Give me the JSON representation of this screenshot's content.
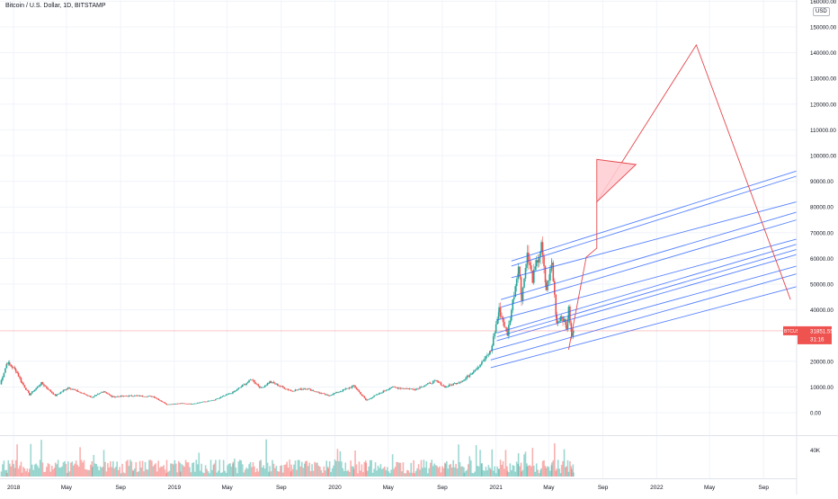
{
  "symbol_title": "Bitcoin / U.S. Dollar, 1D, BITSTAMP",
  "currency": "USD",
  "price_label": {
    "ticker": "BTCUSD",
    "price": "31851.55",
    "countdown": "31:16",
    "value": 31851.55,
    "color": "#ef5350"
  },
  "colors": {
    "up": "#26a69a",
    "down": "#ef5350",
    "channel_lines": "#2962ff",
    "projection": "#e5484d",
    "grid": "#f0f3fa",
    "axis_text": "#131722"
  },
  "chart_data": {
    "type": "candlestick",
    "title": "Bitcoin / U.S. Dollar, 1D, BITSTAMP",
    "y_axis": {
      "min": 0,
      "max": 160000,
      "ticks": [
        {
          "value": 160000,
          "label": "160000.00"
        },
        {
          "value": 150000,
          "label": "150000.00"
        },
        {
          "value": 140000,
          "label": "140000.00"
        },
        {
          "value": 130000,
          "label": "130000.00"
        },
        {
          "value": 120000,
          "label": "120000.00"
        },
        {
          "value": 110000,
          "label": "110000.00"
        },
        {
          "value": 100000,
          "label": "100000.00"
        },
        {
          "value": 90000,
          "label": "90000.00"
        },
        {
          "value": 80000,
          "label": "80000.00"
        },
        {
          "value": 70000,
          "label": "70000.00"
        },
        {
          "value": 60000,
          "label": "60000.00"
        },
        {
          "value": 50000,
          "label": "50000.00"
        },
        {
          "value": 40000,
          "label": "40000.00"
        },
        {
          "value": 20000,
          "label": "20000.00"
        },
        {
          "value": 10000,
          "label": "10000.00"
        },
        {
          "value": 0,
          "label": "0.00"
        }
      ]
    },
    "x_axis": {
      "start": "2017-12-01",
      "end": "2022-11-15",
      "ticks": [
        {
          "date": "2018-01-01",
          "label": "2018"
        },
        {
          "date": "2018-05-01",
          "label": "May"
        },
        {
          "date": "2018-09-01",
          "label": "Sep"
        },
        {
          "date": "2019-01-01",
          "label": "2019"
        },
        {
          "date": "2019-05-01",
          "label": "May"
        },
        {
          "date": "2019-09-01",
          "label": "Sep"
        },
        {
          "date": "2020-01-01",
          "label": "2020"
        },
        {
          "date": "2020-05-01",
          "label": "May"
        },
        {
          "date": "2020-09-01",
          "label": "Sep"
        },
        {
          "date": "2021-01-01",
          "label": "2021"
        },
        {
          "date": "2021-05-01",
          "label": "May"
        },
        {
          "date": "2021-09-01",
          "label": "Sep"
        },
        {
          "date": "2022-01-01",
          "label": "2022"
        },
        {
          "date": "2022-05-01",
          "label": "May"
        },
        {
          "date": "2022-09-01",
          "label": "Sep"
        }
      ]
    },
    "price_path": [
      [
        "2017-12-01",
        11000
      ],
      [
        "2017-12-17",
        19500
      ],
      [
        "2018-01-06",
        16500
      ],
      [
        "2018-01-20",
        11500
      ],
      [
        "2018-02-06",
        7000
      ],
      [
        "2018-03-05",
        11500
      ],
      [
        "2018-04-06",
        6600
      ],
      [
        "2018-05-05",
        9800
      ],
      [
        "2018-06-29",
        5900
      ],
      [
        "2018-07-25",
        8400
      ],
      [
        "2018-08-12",
        6200
      ],
      [
        "2018-09-30",
        6600
      ],
      [
        "2018-11-14",
        6300
      ],
      [
        "2018-12-15",
        3200
      ],
      [
        "2019-01-15",
        3600
      ],
      [
        "2019-02-08",
        3400
      ],
      [
        "2019-04-02",
        4900
      ],
      [
        "2019-05-15",
        8000
      ],
      [
        "2019-06-26",
        13000
      ],
      [
        "2019-07-17",
        9500
      ],
      [
        "2019-08-06",
        12000
      ],
      [
        "2019-09-24",
        8500
      ],
      [
        "2019-10-26",
        9500
      ],
      [
        "2019-12-17",
        6600
      ],
      [
        "2020-02-13",
        10400
      ],
      [
        "2020-03-12",
        4800
      ],
      [
        "2020-05-08",
        9900
      ],
      [
        "2020-06-30",
        9100
      ],
      [
        "2020-08-17",
        12300
      ],
      [
        "2020-09-08",
        10000
      ],
      [
        "2020-10-21",
        12800
      ],
      [
        "2020-11-30",
        19500
      ],
      [
        "2020-12-20",
        24000
      ],
      [
        "2021-01-08",
        40000
      ],
      [
        "2021-01-27",
        30500
      ],
      [
        "2021-02-21",
        57000
      ],
      [
        "2021-02-28",
        45000
      ],
      [
        "2021-03-13",
        61000
      ],
      [
        "2021-03-25",
        52000
      ],
      [
        "2021-04-14",
        64500
      ],
      [
        "2021-04-25",
        48000
      ],
      [
        "2021-05-08",
        58000
      ],
      [
        "2021-05-19",
        35000
      ],
      [
        "2021-05-30",
        38000
      ],
      [
        "2021-06-10",
        33000
      ],
      [
        "2021-06-15",
        40000
      ],
      [
        "2021-06-22",
        29500
      ],
      [
        "2021-06-26",
        31851
      ]
    ],
    "channel_lines": [
      {
        "x1": "2020-12-20",
        "y1": 24200,
        "x2": "2022-11-15",
        "y2": 57000
      },
      {
        "x1": "2020-12-20",
        "y1": 20500,
        "x2": "2022-11-15",
        "y2": 54000
      },
      {
        "x1": "2020-12-20",
        "y1": 17500,
        "x2": "2022-11-15",
        "y2": 49000
      },
      {
        "x1": "2021-01-03",
        "y1": 31000,
        "x2": "2022-11-15",
        "y2": 65500
      },
      {
        "x1": "2021-01-03",
        "y1": 29500,
        "x2": "2022-11-15",
        "y2": 63500
      },
      {
        "x1": "2021-01-03",
        "y1": 28000,
        "x2": "2022-11-15",
        "y2": 61500
      },
      {
        "x1": "2021-01-03",
        "y1": 36000,
        "x2": "2022-11-15",
        "y2": 67500
      },
      {
        "x1": "2021-01-12",
        "y1": 44000,
        "x2": "2022-11-15",
        "y2": 78000
      },
      {
        "x1": "2021-01-12",
        "y1": 41000,
        "x2": "2022-11-15",
        "y2": 75000
      },
      {
        "x1": "2021-02-05",
        "y1": 52500,
        "x2": "2022-11-15",
        "y2": 82000
      },
      {
        "x1": "2021-02-05",
        "y1": 59000,
        "x2": "2022-11-15",
        "y2": 94000
      },
      {
        "x1": "2021-02-05",
        "y1": 57000,
        "x2": "2022-11-15",
        "y2": 92000
      }
    ],
    "projection_path": [
      [
        "2021-06-15",
        24500
      ],
      [
        "2021-07-25",
        60500
      ],
      [
        "2021-08-18",
        64000
      ],
      [
        "2021-08-18",
        82000
      ],
      [
        "2022-04-01",
        143000
      ],
      [
        "2022-11-01",
        44000
      ]
    ],
    "projection_triangle": [
      [
        "2021-08-18",
        82000
      ],
      [
        "2021-08-18",
        98500
      ],
      [
        "2021-11-15",
        96500
      ]
    ],
    "volume_axis_label": "40K",
    "volume_axis_value": 40000,
    "volume_max": 60000,
    "volume_note": "daily volume bars, Dec 2017 – Jun 2021"
  }
}
